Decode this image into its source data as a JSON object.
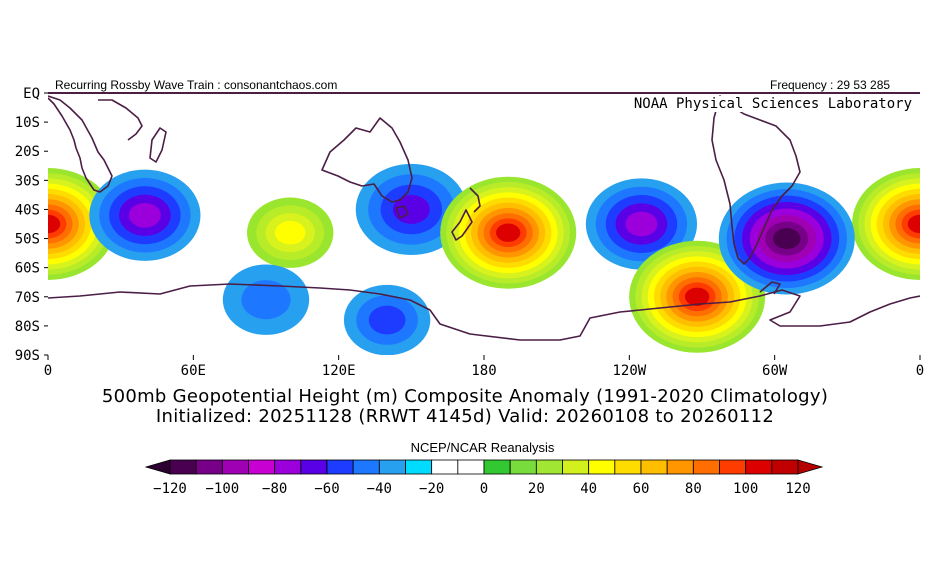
{
  "header": {
    "left_text": "Recurring Rossby Wave Train : consonantchaos.com",
    "right_text": "Frequency : 29 53 285",
    "lab_text": "NOAA Physical Sciences Laboratory"
  },
  "map": {
    "lat_labels": [
      "EQ",
      "10S",
      "20S",
      "30S",
      "40S",
      "50S",
      "60S",
      "70S",
      "80S",
      "90S"
    ],
    "lon_labels": [
      "0",
      "60E",
      "120E",
      "180",
      "120W",
      "60W",
      "0"
    ],
    "anomalies": [
      {
        "lon": 0,
        "lat": -45,
        "value": 120
      },
      {
        "lon": 360,
        "lat": -45,
        "value": 120
      },
      {
        "lon": 40,
        "lat": -42,
        "value": -70
      },
      {
        "lon": 100,
        "lat": -48,
        "value": 50
      },
      {
        "lon": 150,
        "lat": -40,
        "value": -60
      },
      {
        "lon": 190,
        "lat": -48,
        "value": 120
      },
      {
        "lon": 245,
        "lat": -45,
        "value": -80
      },
      {
        "lon": 268,
        "lat": -70,
        "value": 120
      },
      {
        "lon": 305,
        "lat": -50,
        "value": -120
      },
      {
        "lon": 140,
        "lat": -78,
        "value": -40
      },
      {
        "lon": 90,
        "lat": -71,
        "value": -30
      }
    ]
  },
  "titles": {
    "line1": "500mb Geopotential Height (m) Composite Anomaly (1991-2020 Climatology)",
    "line2": "Initialized: 20251128 (RRWT 4145d) Valid: 20260108 to 20260112",
    "source": "NCEP/NCAR Reanalysis"
  },
  "colorbar": {
    "labels": [
      "-120",
      "-100",
      "-80",
      "-60",
      "-40",
      "-20",
      "0",
      "20",
      "40",
      "60",
      "80",
      "100",
      "120"
    ],
    "colors": [
      "#4a0050",
      "#780089",
      "#a000b4",
      "#c800d2",
      "#9b00dc",
      "#5a00e6",
      "#1e3cff",
      "#1e78ff",
      "#28a0f0",
      "#00dcff",
      "#ffffff",
      "#ffffff",
      "#32c832",
      "#78dc3c",
      "#a0e632",
      "#d2f01e",
      "#ffff00",
      "#ffdc00",
      "#ffbe00",
      "#ff9600",
      "#ff6e00",
      "#ff3c00",
      "#dc0000",
      "#c00000"
    ],
    "arrow_low": "#2d0032",
    "arrow_high": "#b40000"
  }
}
